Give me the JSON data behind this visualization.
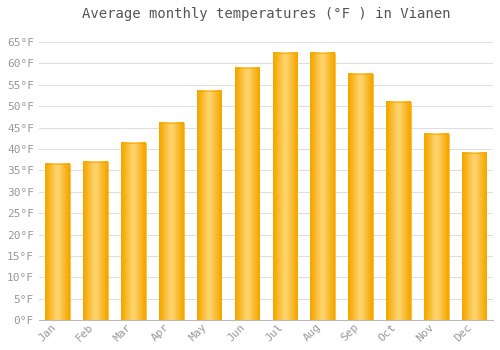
{
  "title": "Average monthly temperatures (°F ) in Vianen",
  "months": [
    "Jan",
    "Feb",
    "Mar",
    "Apr",
    "May",
    "Jun",
    "Jul",
    "Aug",
    "Sep",
    "Oct",
    "Nov",
    "Dec"
  ],
  "values": [
    36.5,
    37.0,
    41.5,
    46.0,
    53.5,
    59.0,
    62.5,
    62.5,
    57.5,
    51.0,
    43.5,
    39.0
  ],
  "bar_color_light": "#FFD060",
  "bar_color_dark": "#F5A800",
  "background_color": "#FFFFFF",
  "grid_color": "#DDDDDD",
  "ylim": [
    0,
    68
  ],
  "yticks": [
    0,
    5,
    10,
    15,
    20,
    25,
    30,
    35,
    40,
    45,
    50,
    55,
    60,
    65
  ],
  "title_fontsize": 10,
  "tick_fontsize": 8,
  "tick_color": "#999999"
}
